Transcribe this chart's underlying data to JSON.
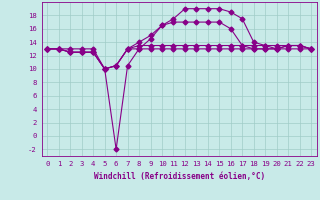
{
  "xlabel": "Windchill (Refroidissement éolien,°C)",
  "background_color": "#c8eae8",
  "grid_color": "#a0ccc8",
  "line_color": "#880088",
  "x_values": [
    0,
    1,
    2,
    3,
    4,
    5,
    6,
    7,
    8,
    9,
    10,
    11,
    12,
    13,
    14,
    15,
    16,
    17,
    18,
    19,
    20,
    21,
    22,
    23
  ],
  "line1": [
    13,
    13,
    13,
    13,
    13,
    10,
    10.5,
    13,
    13,
    13,
    13,
    13,
    13,
    13,
    13,
    13,
    13,
    13,
    13,
    13,
    13,
    13,
    13,
    13
  ],
  "line2": [
    13,
    13,
    12.5,
    12.5,
    12.5,
    10,
    10.5,
    13,
    13.5,
    13.5,
    13.5,
    13.5,
    13.5,
    13.5,
    13.5,
    13.5,
    13.5,
    13.5,
    13.5,
    13.5,
    13.5,
    13.5,
    13.5,
    13
  ],
  "line3": [
    13,
    13,
    12.5,
    12.5,
    12.5,
    10,
    10.5,
    13,
    14,
    15,
    16.5,
    17,
    17,
    17,
    17,
    17,
    16,
    13.5,
    13,
    13,
    13,
    13.5,
    13.5,
    13
  ],
  "line4": [
    13,
    13,
    12.5,
    12.5,
    12.5,
    10,
    -2,
    10.5,
    13,
    14.5,
    16.5,
    17.5,
    19,
    19,
    19,
    19,
    18.5,
    17.5,
    14,
    13.5,
    13,
    13.5,
    13.5,
    13
  ],
  "ylim": [
    -3,
    20
  ],
  "xlim": [
    -0.5,
    23.5
  ],
  "yticks": [
    -2,
    0,
    2,
    4,
    6,
    8,
    10,
    12,
    14,
    16,
    18
  ],
  "xticks": [
    0,
    1,
    2,
    3,
    4,
    5,
    6,
    7,
    8,
    9,
    10,
    11,
    12,
    13,
    14,
    15,
    16,
    17,
    18,
    19,
    20,
    21,
    22,
    23
  ],
  "ylabel_fontsize": 5.5,
  "tick_fontsize": 5.2,
  "linewidth": 0.8,
  "markersize": 2.5
}
